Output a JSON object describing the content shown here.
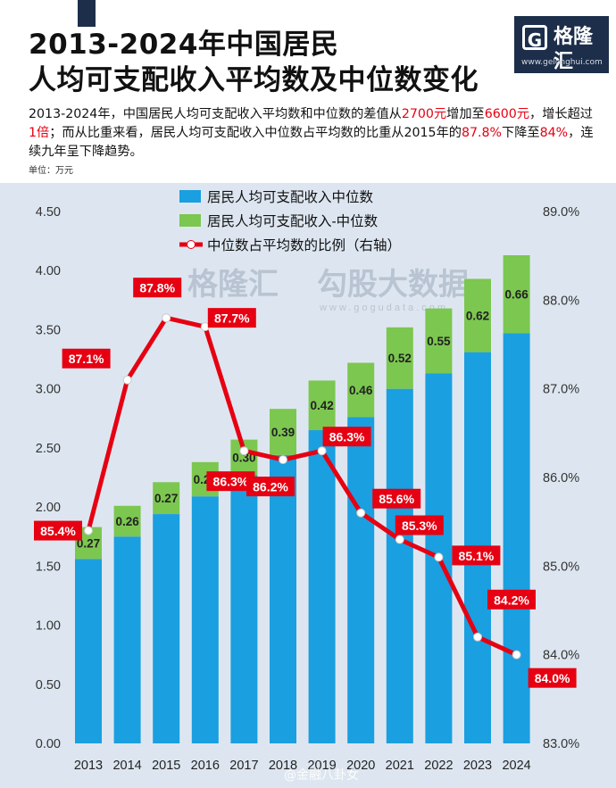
{
  "header": {
    "title_line1": "2013-2024年中国居民",
    "title_line2": "人均可支配收入平均数及中位数变化",
    "logo_mark": "G",
    "logo_name": "格隆汇",
    "logo_url": "www.gelonghui.com"
  },
  "description": {
    "p1": "2013-2024年，中国居民人均可支配收入平均数和中位数的差值从",
    "v1": "2700元",
    "p2": "增加至",
    "v2": "6600元",
    "p3": "，增长超过",
    "v3": "1倍",
    "p4": "；而从比重来看，居民人均可支配收入中位数占平均数的比重从2015年的",
    "v4": "87.8%",
    "p5": "下降至",
    "v5": "84%",
    "p6": "，连续九年呈下降趋势。"
  },
  "unit_label": "单位：万元",
  "watermark": {
    "brand": "格隆汇",
    "brand2": "勾股大数据",
    "url": "www.gogudata.com"
  },
  "footer_watermark": "@金融八卦女",
  "colors": {
    "blue": "#1a9fe0",
    "green": "#7cc750",
    "red": "#e60012",
    "bg": "#dde6f0"
  },
  "chart_data": {
    "type": "bar",
    "stacked": true,
    "categories": [
      "2013",
      "2014",
      "2015",
      "2016",
      "2017",
      "2018",
      "2019",
      "2020",
      "2021",
      "2022",
      "2023",
      "2024"
    ],
    "series": [
      {
        "name": "居民人均可支配收入中位数",
        "type": "bar",
        "values": [
          1.56,
          1.75,
          1.94,
          2.09,
          2.27,
          2.44,
          2.65,
          2.76,
          3.0,
          3.13,
          3.31,
          3.47
        ]
      },
      {
        "name": "居民人均可支配收入-中位数",
        "type": "bar",
        "values": [
          0.27,
          0.26,
          0.27,
          0.29,
          0.3,
          0.39,
          0.42,
          0.46,
          0.52,
          0.55,
          0.62,
          0.66
        ],
        "labels": [
          "0.27",
          "0.26",
          "0.27",
          "0.29",
          "0.30",
          "0.39",
          "0.42",
          "0.46",
          "0.52",
          "0.55",
          "0.62",
          "0.66"
        ]
      },
      {
        "name": "中位数占平均数的比例（右轴）",
        "type": "line",
        "axis": "right",
        "values": [
          85.4,
          87.1,
          87.8,
          87.7,
          86.3,
          86.2,
          86.3,
          85.6,
          85.3,
          85.1,
          84.2,
          84.0
        ],
        "labels": [
          "85.4%",
          "87.1%",
          "87.8%",
          "87.7%",
          "86.3%",
          "86.2%",
          "86.3%",
          "85.6%",
          "85.3%",
          "85.1%",
          "84.2%",
          "84.0%"
        ]
      }
    ],
    "y_left": {
      "min": 0,
      "max": 4.5,
      "ticks": [
        "0.00",
        "0.50",
        "1.00",
        "1.50",
        "2.00",
        "2.50",
        "3.00",
        "3.50",
        "4.00",
        "4.50"
      ]
    },
    "y_right": {
      "min": 83.0,
      "max": 89.0,
      "ticks": [
        "83.0%",
        "84.0%",
        "85.0%",
        "86.0%",
        "87.0%",
        "88.0%",
        "89.0%"
      ]
    },
    "legend_position": "top-center",
    "grid": false
  }
}
